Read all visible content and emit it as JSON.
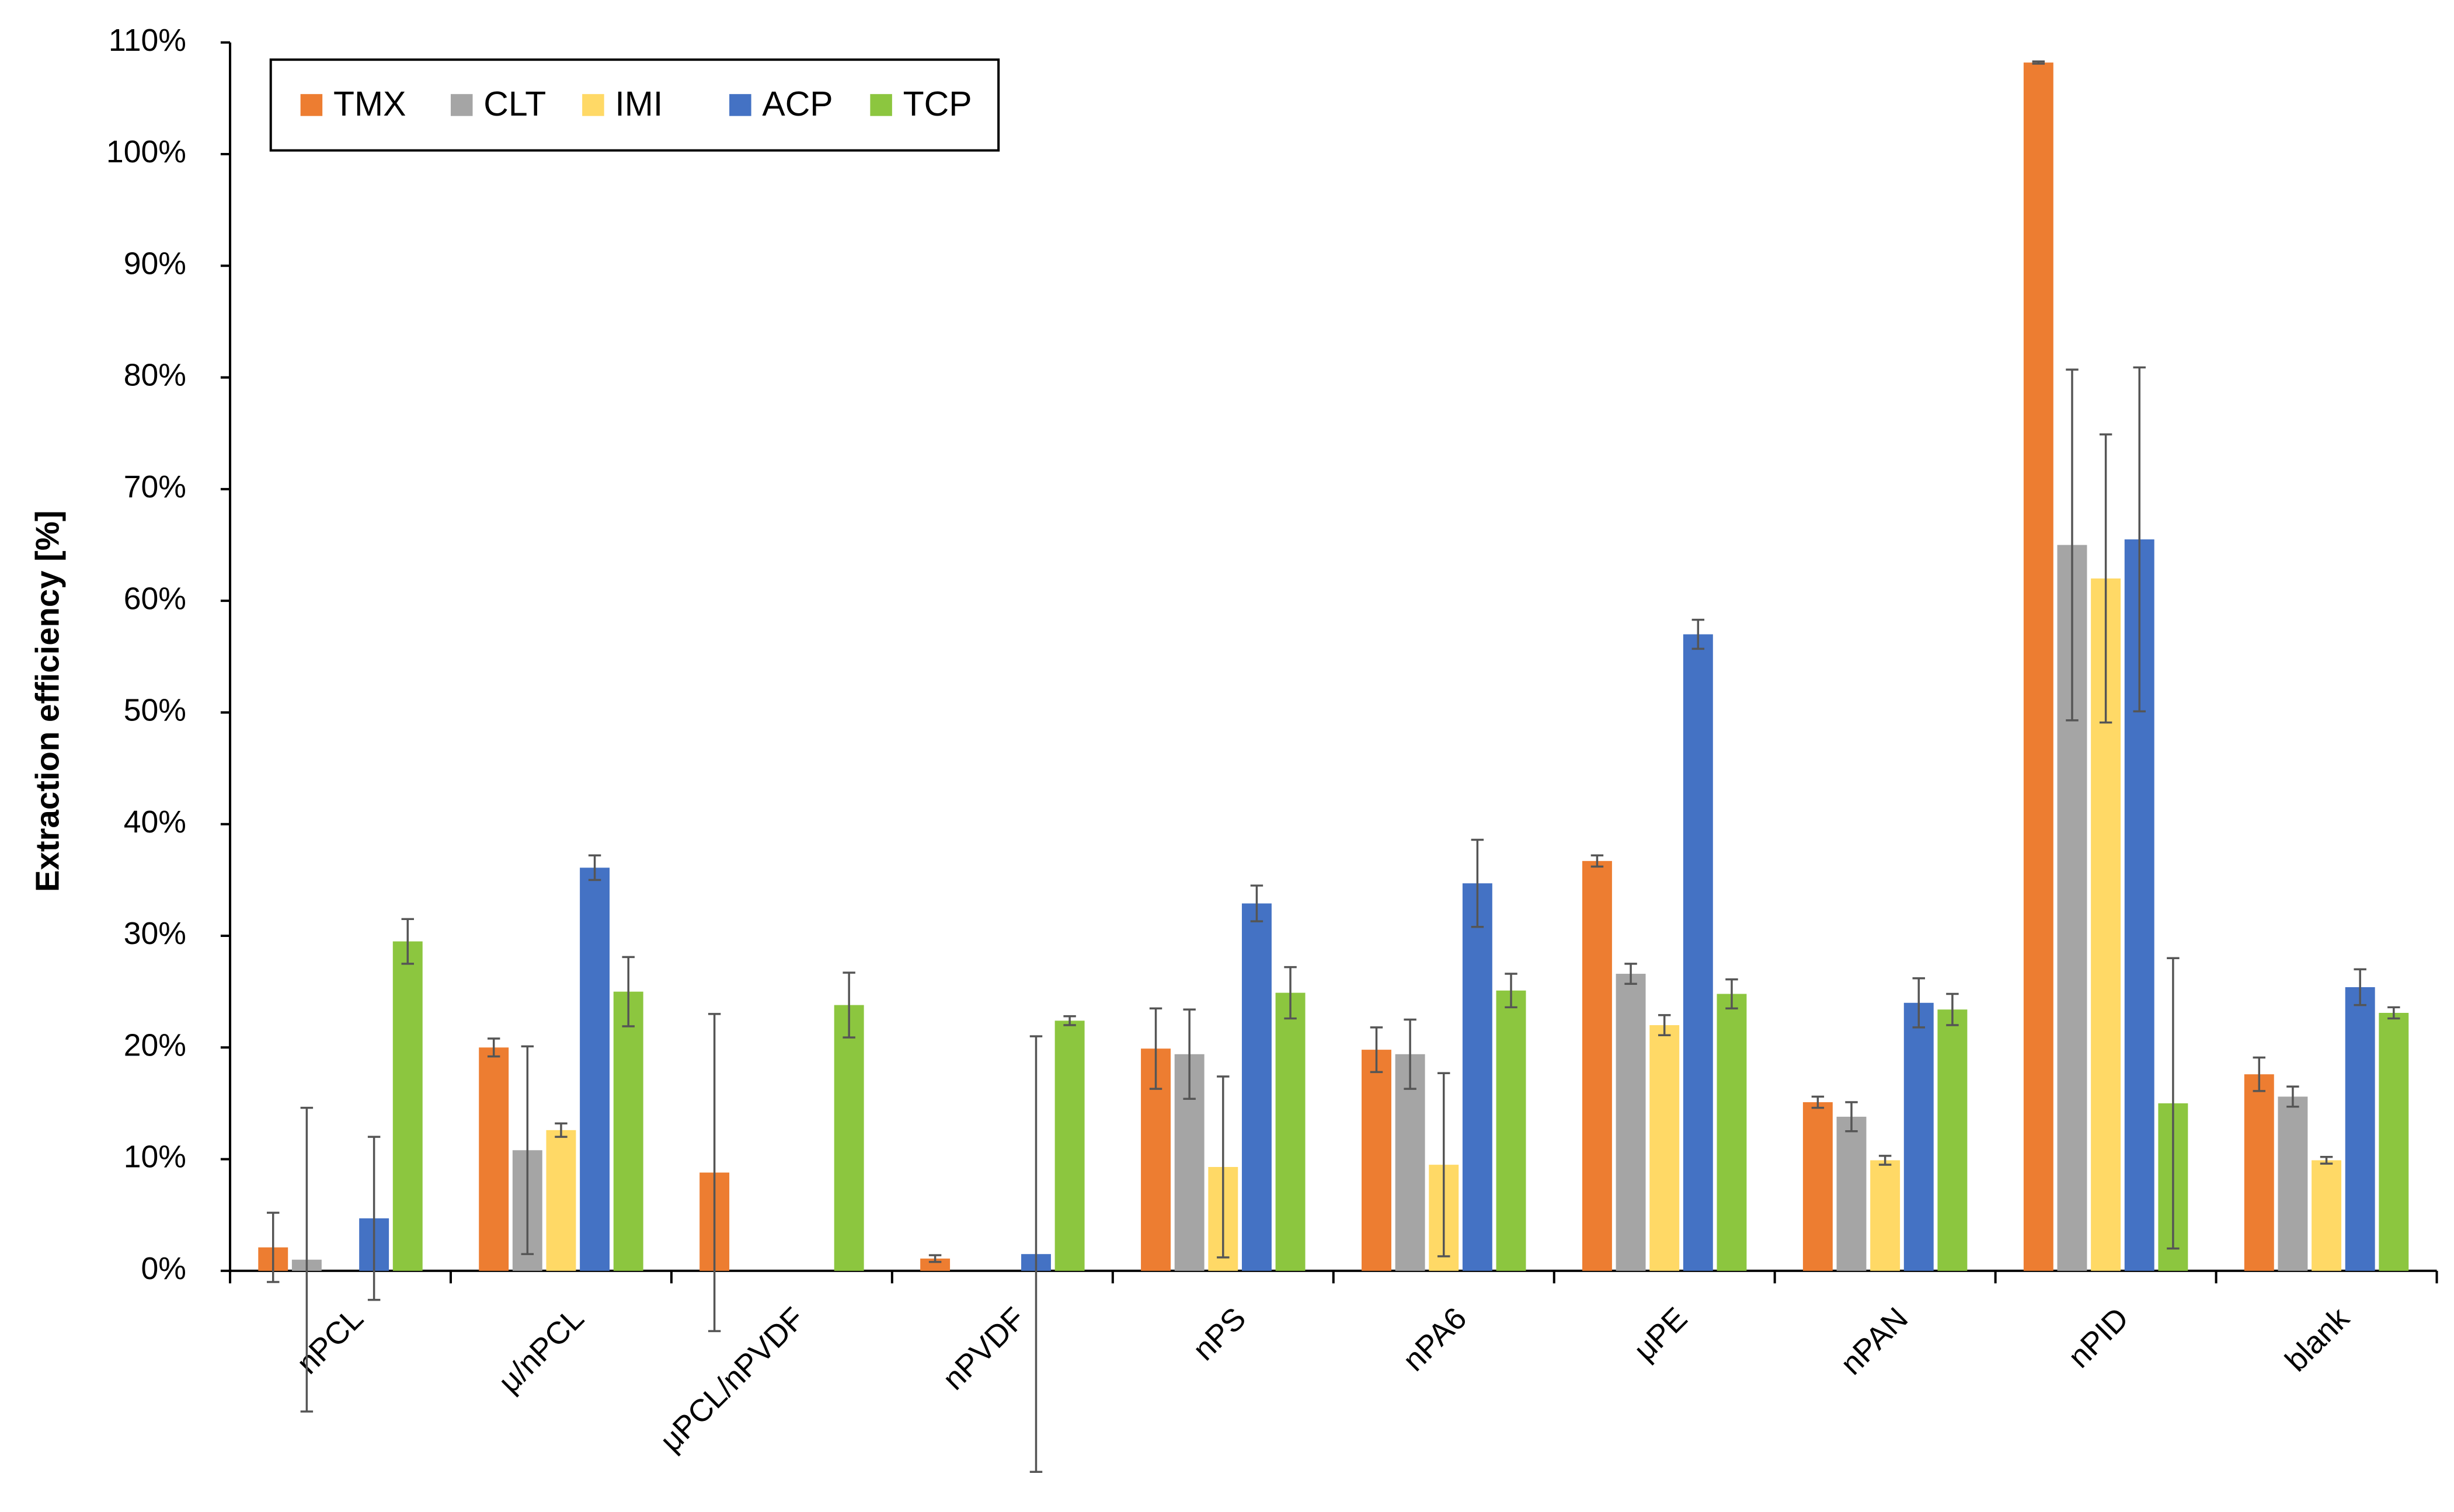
{
  "chart_data": {
    "type": "bar",
    "y_label": "Extraction efficiency [%]",
    "categories": [
      "nPCL",
      "μ/nPCL",
      "μPCL/nPVDF",
      "nPVDF",
      "nPS",
      "nPA6",
      "μPE",
      "nPAN",
      "nPID",
      "blank"
    ],
    "series": [
      {
        "name": "TMX",
        "color": "#ed7d31",
        "values": [
          2.1,
          20.0,
          8.8,
          1.1,
          19.9,
          19.8,
          36.7,
          15.1,
          108.2,
          17.6
        ],
        "errors": [
          3.1,
          0.8,
          14.2,
          0.3,
          3.6,
          2.0,
          0.5,
          0.5,
          0.1,
          1.5
        ]
      },
      {
        "name": "CLT",
        "color": "#a5a5a5",
        "values": [
          1.0,
          10.8,
          null,
          null,
          19.4,
          19.4,
          26.6,
          13.8,
          65.0,
          15.6
        ],
        "errors": [
          13.6,
          9.3,
          null,
          null,
          4.0,
          3.1,
          0.9,
          1.3,
          15.7,
          0.9
        ]
      },
      {
        "name": "IMI",
        "color": "#ffd966",
        "values": [
          null,
          12.6,
          null,
          null,
          9.3,
          9.5,
          22.0,
          9.9,
          62.0,
          9.9
        ],
        "errors": [
          null,
          0.6,
          null,
          null,
          8.1,
          8.2,
          0.9,
          0.4,
          12.9,
          0.3
        ]
      },
      {
        "name": "ACP",
        "color": "#4472c4",
        "values": [
          4.7,
          36.1,
          null,
          1.5,
          32.9,
          34.7,
          57.0,
          24.0,
          65.5,
          25.4
        ],
        "errors": [
          7.3,
          1.1,
          null,
          19.5,
          1.6,
          3.9,
          1.3,
          2.2,
          15.4,
          1.6
        ]
      },
      {
        "name": "TCP",
        "color": "#8cc63f",
        "values": [
          29.5,
          25.0,
          23.8,
          22.4,
          24.9,
          25.1,
          24.8,
          23.4,
          15.0,
          23.1
        ],
        "errors": [
          2.0,
          3.1,
          2.9,
          0.4,
          2.3,
          1.5,
          1.3,
          1.4,
          13.0,
          0.5
        ]
      }
    ],
    "ylim": [
      0,
      110
    ],
    "yticks": [
      {
        "value": 0,
        "label": "0%"
      },
      {
        "value": 10,
        "label": "10%"
      },
      {
        "value": 20,
        "label": "20%"
      },
      {
        "value": 30,
        "label": "30%"
      },
      {
        "value": 40,
        "label": "40%"
      },
      {
        "value": 50,
        "label": "50%"
      },
      {
        "value": 60,
        "label": "60%"
      },
      {
        "value": 70,
        "label": "70%"
      },
      {
        "value": 80,
        "label": "80%"
      },
      {
        "value": 90,
        "label": "90%"
      },
      {
        "value": 100,
        "label": "100%"
      },
      {
        "value": 110,
        "label": "110%"
      }
    ],
    "legend": "top-left"
  }
}
